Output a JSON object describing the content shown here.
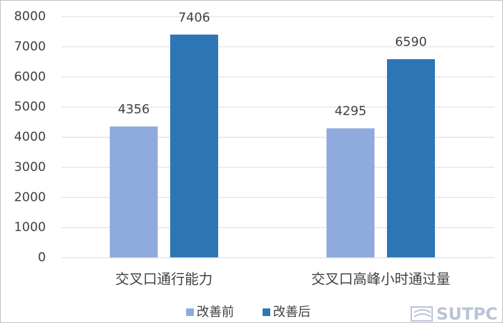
{
  "chart_data": {
    "type": "bar",
    "categories": [
      "交叉口通行能力",
      "交叉口高峰小时通过量"
    ],
    "series": [
      {
        "name": "改善前",
        "color": "#8faadc",
        "values": [
          4356,
          4295
        ]
      },
      {
        "name": "改善后",
        "color": "#2e75b6",
        "values": [
          7406,
          6590
        ]
      }
    ],
    "ylim": [
      0,
      8000
    ],
    "yticks": [
      0,
      1000,
      2000,
      3000,
      4000,
      5000,
      6000,
      7000,
      8000
    ],
    "grid": true,
    "legend": "bottom",
    "watermark": "SUTPC"
  }
}
